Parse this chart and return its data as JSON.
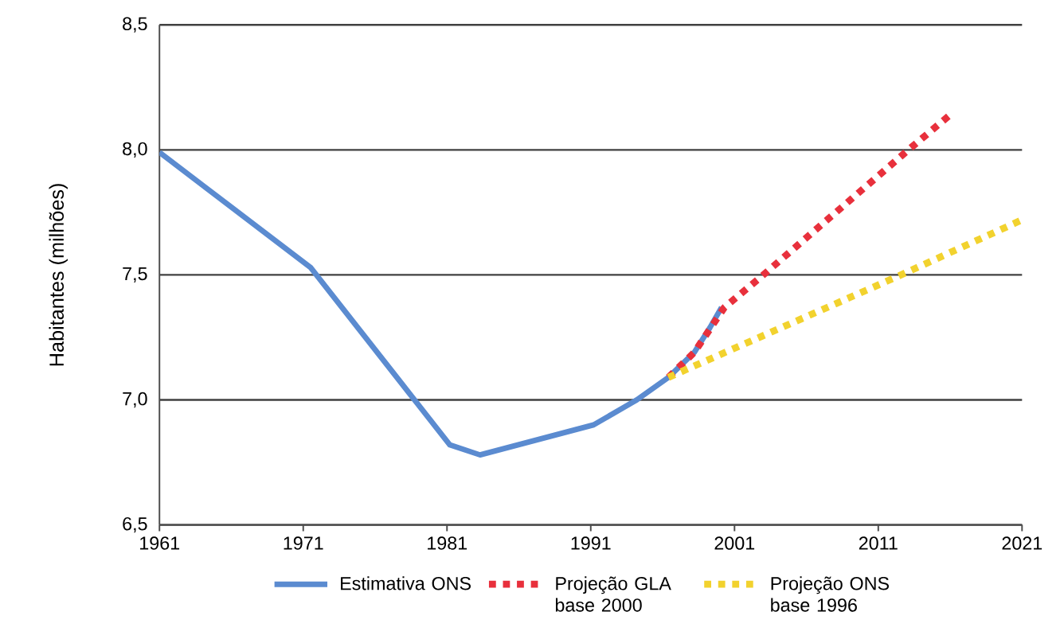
{
  "chart_data": {
    "type": "line",
    "ylabel": "Habitantes (milhões)",
    "xlim": [
      1961,
      2021
    ],
    "xticks": [
      1961,
      1971,
      1981,
      1991,
      2001,
      2011,
      2021
    ],
    "ylim": [
      6.5,
      8.5
    ],
    "yticks": [
      {
        "value": 6.5,
        "label": "6,5"
      },
      {
        "value": 7.0,
        "label": "7,0"
      },
      {
        "value": 7.5,
        "label": "7,5"
      },
      {
        "value": 8.0,
        "label": "8,0"
      },
      {
        "value": 8.5,
        "label": "8,5"
      }
    ],
    "grid": "y",
    "legend": "bottom",
    "marker": "none",
    "series": [
      {
        "name": "Estimativa ONS",
        "color": "#5b8bd0",
        "line_style": "solid",
        "x": [
          1961,
          1971.5,
          1981.2,
          1983.3,
          1991.2,
          1994.2,
          1996.4,
          1998.2,
          1999.3,
          2000.1
        ],
        "values": [
          7.99,
          7.53,
          6.82,
          6.78,
          6.9,
          7.0,
          7.09,
          7.19,
          7.29,
          7.37
        ]
      },
      {
        "name": "Projeção GLA base 2000",
        "color": "#e8303c",
        "line_style": "dotted",
        "x": [
          1996.4,
          1998.2,
          2000.3,
          2002.8,
          2013.3,
          2016.0
        ],
        "values": [
          7.09,
          7.19,
          7.37,
          7.49,
          8.01,
          8.14
        ]
      },
      {
        "name": "Projeção ONS base 1996",
        "color": "#f2d22e",
        "line_style": "dotted",
        "x": [
          1996.4,
          2012.2,
          2021
        ],
        "values": [
          7.09,
          7.49,
          7.72
        ]
      }
    ]
  }
}
